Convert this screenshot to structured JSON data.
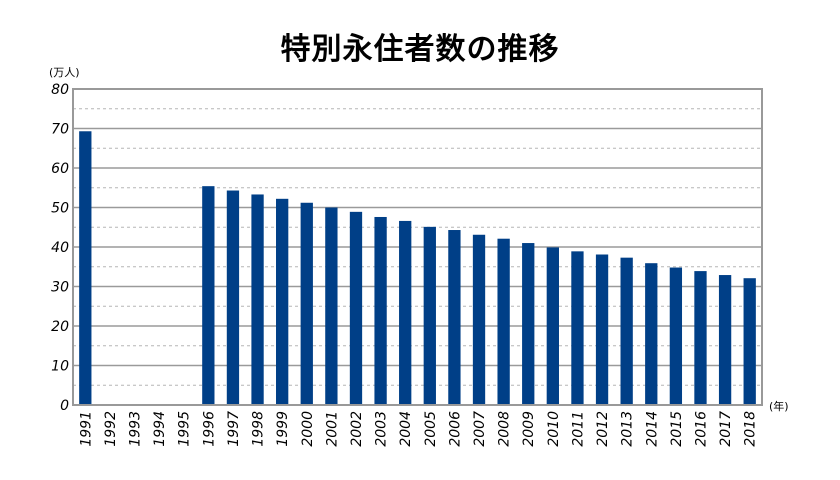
{
  "chart_data": {
    "type": "bar",
    "title": "特別永住者数の推移",
    "y_unit": "(万人)",
    "x_unit": "(年)",
    "ylim": [
      0,
      80
    ],
    "y_ticks": [
      0,
      10,
      20,
      30,
      40,
      50,
      60,
      70,
      80
    ],
    "grid": true,
    "bar_color": "#003f87",
    "categories": [
      "1991",
      "1992",
      "1993",
      "1994",
      "1995",
      "1996",
      "1997",
      "1998",
      "1999",
      "2000",
      "2001",
      "2002",
      "2003",
      "2004",
      "2005",
      "2006",
      "2007",
      "2008",
      "2009",
      "2010",
      "2011",
      "2012",
      "2013",
      "2014",
      "2015",
      "2016",
      "2017",
      "2018"
    ],
    "values": [
      69.3,
      null,
      null,
      null,
      null,
      55.4,
      54.3,
      53.3,
      52.2,
      51.2,
      50.0,
      48.9,
      47.6,
      46.6,
      45.1,
      44.3,
      43.1,
      42.1,
      41.0,
      39.9,
      38.9,
      38.1,
      37.3,
      35.9,
      34.8,
      33.9,
      32.9,
      32.1
    ]
  }
}
